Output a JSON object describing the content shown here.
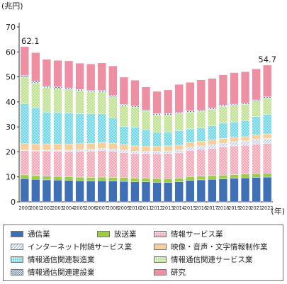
{
  "chart_data": {
    "type": "bar",
    "stacked": true,
    "unit_label": "(兆円)",
    "x_unit_label": "(年)",
    "ylim": [
      0,
      70
    ],
    "yticks": [
      "0",
      "10",
      "20",
      "30",
      "40",
      "50",
      "60",
      "70"
    ],
    "grid": false,
    "legend_position": "bottom",
    "categories": [
      "2000",
      "2001",
      "2002",
      "2003",
      "2004",
      "2005",
      "2006",
      "2007",
      "2008",
      "2009",
      "2010",
      "2011",
      "2012",
      "2013",
      "2014",
      "2015",
      "2016",
      "2017",
      "2018",
      "2019",
      "2020",
      "2021",
      "2022"
    ],
    "series": [
      {
        "name": "通信業",
        "color": "#3f6fb4",
        "pattern": "solid",
        "values": [
          9.3,
          9.0,
          8.8,
          8.7,
          8.6,
          8.4,
          8.3,
          8.4,
          8.3,
          8.2,
          8.0,
          8.0,
          7.8,
          7.8,
          8.0,
          8.6,
          8.8,
          9.0,
          9.2,
          9.4,
          9.6,
          9.8,
          9.9
        ]
      },
      {
        "name": "放送業",
        "color": "#9ccc4a",
        "pattern": "solid",
        "values": [
          1.5,
          1.5,
          1.5,
          1.5,
          1.5,
          1.5,
          1.5,
          1.5,
          1.5,
          1.5,
          1.5,
          1.5,
          1.5,
          1.5,
          1.5,
          1.5,
          1.5,
          1.5,
          1.5,
          1.5,
          1.5,
          1.5,
          1.5
        ]
      },
      {
        "name": "情報サービス業",
        "color": "#f3a7b6",
        "pattern": "dots",
        "values": [
          9.7,
          9.8,
          10.0,
          10.0,
          10.0,
          10.3,
          10.4,
          10.6,
          10.4,
          10.0,
          9.8,
          9.8,
          9.9,
          10.0,
          10.1,
          10.5,
          10.7,
          10.9,
          11.2,
          11.5,
          11.5,
          11.8,
          12.0
        ]
      },
      {
        "name": "インターネット附随サービス業",
        "color": "#b9c9ec",
        "pattern": "stripes",
        "values": [
          0.2,
          0.3,
          0.4,
          0.5,
          0.6,
          0.7,
          0.8,
          0.9,
          1.0,
          1.0,
          1.0,
          1.0,
          1.1,
          1.1,
          1.2,
          1.3,
          1.4,
          1.5,
          1.6,
          1.7,
          1.8,
          1.9,
          2.0
        ]
      },
      {
        "name": "映像・音声・文字情報制作業",
        "color": "#f8cf9a",
        "pattern": "solid",
        "values": [
          2.6,
          2.6,
          2.5,
          2.5,
          2.5,
          2.4,
          2.4,
          2.3,
          2.3,
          2.2,
          2.1,
          2.0,
          2.0,
          2.0,
          1.9,
          1.9,
          1.9,
          1.9,
          1.9,
          1.8,
          1.7,
          1.8,
          1.8
        ]
      },
      {
        "name": "情報通信関連製造業",
        "color": "#6fd6e6",
        "pattern": "dots",
        "values": [
          16.0,
          14.4,
          12.7,
          12.5,
          12.3,
          12.0,
          11.8,
          11.5,
          10.0,
          7.3,
          7.5,
          6.5,
          5.5,
          5.5,
          5.8,
          5.4,
          5.3,
          5.6,
          6.1,
          6.1,
          6.4,
          7.3,
          7.8
        ]
      },
      {
        "name": "情報通信関連サービス業",
        "color": "#bfe08e",
        "pattern": "dots",
        "values": [
          10.5,
          10.0,
          9.8,
          9.6,
          9.4,
          9.1,
          8.9,
          8.8,
          8.5,
          8.2,
          8.0,
          7.5,
          7.0,
          6.9,
          6.8,
          6.7,
          6.6,
          6.6,
          6.7,
          6.6,
          6.5,
          6.2,
          6.5
        ]
      },
      {
        "name": "情報通信関連建設業",
        "color": "#5f86b8",
        "pattern": "checks",
        "values": [
          0.8,
          0.8,
          0.7,
          0.7,
          0.7,
          0.6,
          0.6,
          0.6,
          0.6,
          0.6,
          0.5,
          0.5,
          0.5,
          0.5,
          0.5,
          0.5,
          0.5,
          0.5,
          0.5,
          0.5,
          0.5,
          0.5,
          0.5
        ]
      },
      {
        "name": "研究",
        "color": "#ef8fa4",
        "pattern": "solid",
        "values": [
          11.5,
          11.3,
          10.6,
          10.6,
          10.8,
          10.5,
          10.5,
          11.0,
          11.8,
          10.9,
          10.3,
          9.2,
          8.9,
          9.5,
          11.2,
          11.4,
          12.1,
          11.9,
          12.1,
          12.6,
          12.6,
          12.4,
          12.7
        ]
      }
    ],
    "annotations": [
      {
        "category": "2000",
        "text": "62.1"
      },
      {
        "category": "2022",
        "text": "54.7"
      }
    ]
  },
  "legend_layout": [
    [
      "通信業",
      "放送業",
      "情報サービス業"
    ],
    [
      "インターネット附随サービス業",
      "映像・音声・文字情報制作業"
    ],
    [
      "情報通信関連製造業",
      "情報通信関連サービス業"
    ],
    [
      "情報通信関連建設業",
      "研究"
    ]
  ]
}
